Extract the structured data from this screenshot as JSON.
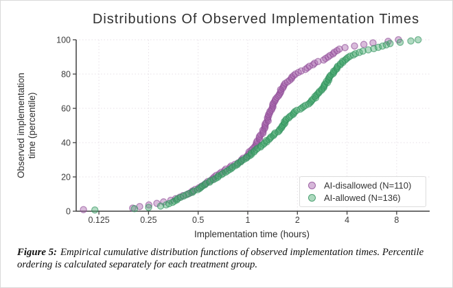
{
  "figure": {
    "caption_label": "Figure 5:",
    "caption_text": "Empirical cumulative distribution functions of observed implementation times. Percentile ordering is calculated separately for each treatment group."
  },
  "colors": {
    "grid": "#e6dfe6",
    "spine": "#3f3f3f",
    "purple_fill": "#a55faa",
    "purple_stroke": "#8c4a94",
    "green_fill": "#46aa6e",
    "green_stroke": "#2f8f5b"
  },
  "chart_data": {
    "type": "scatter",
    "subtype": "ecdf",
    "title": "Distributions Of Observed Implementation Times",
    "xlabel": "Implementation time (hours)",
    "ylabel_line1": "Observed implementation",
    "ylabel_line2": "time (percentile)",
    "x_scale": "log2",
    "xlim": [
      0.09,
      12.5
    ],
    "ylim": [
      0,
      100
    ],
    "grid": true,
    "legend_position": "lower right",
    "x_ticks": [
      {
        "value": 0.125,
        "label": "0.125"
      },
      {
        "value": 0.25,
        "label": "0.25"
      },
      {
        "value": 0.5,
        "label": "0.5"
      },
      {
        "value": 1,
        "label": "1"
      },
      {
        "value": 2,
        "label": "2"
      },
      {
        "value": 4,
        "label": "4"
      },
      {
        "value": 8,
        "label": "8"
      }
    ],
    "y_ticks": [
      0,
      20,
      40,
      60,
      80,
      100
    ],
    "series": [
      {
        "name": "AI-disallowed (N=110)",
        "n": 110,
        "fill": "#a55faa",
        "stroke": "#8c4a94",
        "quantiles_pct_hours": [
          [
            0.9,
            0.1
          ],
          [
            1.8,
            0.2
          ],
          [
            2.7,
            0.22
          ],
          [
            3.6,
            0.25
          ],
          [
            4.5,
            0.28
          ],
          [
            6,
            0.33
          ],
          [
            8,
            0.38
          ],
          [
            10,
            0.43
          ],
          [
            12,
            0.47
          ],
          [
            14,
            0.51
          ],
          [
            16,
            0.55
          ],
          [
            18,
            0.59
          ],
          [
            20,
            0.63
          ],
          [
            23,
            0.7
          ],
          [
            26,
            0.79
          ],
          [
            29,
            0.9
          ],
          [
            32,
            0.98
          ],
          [
            35,
            1.04
          ],
          [
            38,
            1.1
          ],
          [
            41,
            1.15
          ],
          [
            44,
            1.2
          ],
          [
            47,
            1.24
          ],
          [
            50,
            1.28
          ],
          [
            53,
            1.32
          ],
          [
            56,
            1.35
          ],
          [
            59,
            1.39
          ],
          [
            62,
            1.43
          ],
          [
            65,
            1.47
          ],
          [
            68,
            1.53
          ],
          [
            71,
            1.6
          ],
          [
            74,
            1.68
          ],
          [
            77,
            1.8
          ],
          [
            80,
            1.95
          ],
          [
            82,
            2.15
          ],
          [
            85,
            2.4
          ],
          [
            87,
            2.65
          ],
          [
            89,
            3.0
          ],
          [
            91,
            3.2
          ],
          [
            93,
            3.4
          ],
          [
            95,
            3.65
          ],
          [
            96,
            4.2
          ],
          [
            97,
            4.9
          ],
          [
            98,
            5.5
          ],
          [
            99,
            7.0
          ],
          [
            100,
            8.2
          ]
        ]
      },
      {
        "name": "AI-allowed (N=136)",
        "n": 136,
        "fill": "#46aa6e",
        "stroke": "#2f8f5b",
        "quantiles_pct_hours": [
          [
            0.7,
            0.115
          ],
          [
            1.5,
            0.21
          ],
          [
            2.2,
            0.25
          ],
          [
            3,
            0.3
          ],
          [
            4,
            0.33
          ],
          [
            6,
            0.36
          ],
          [
            8,
            0.39
          ],
          [
            10,
            0.44
          ],
          [
            13,
            0.5
          ],
          [
            16,
            0.56
          ],
          [
            19,
            0.63
          ],
          [
            22,
            0.71
          ],
          [
            25,
            0.79
          ],
          [
            28,
            0.88
          ],
          [
            31,
            0.97
          ],
          [
            34,
            1.07
          ],
          [
            37,
            1.17
          ],
          [
            40,
            1.27
          ],
          [
            43,
            1.38
          ],
          [
            46,
            1.5
          ],
          [
            49,
            1.6
          ],
          [
            52,
            1.68
          ],
          [
            55,
            1.78
          ],
          [
            58,
            1.95
          ],
          [
            60,
            2.1
          ],
          [
            63,
            2.35
          ],
          [
            66,
            2.55
          ],
          [
            69,
            2.68
          ],
          [
            72,
            2.85
          ],
          [
            75,
            3.0
          ],
          [
            78,
            3.12
          ],
          [
            81,
            3.3
          ],
          [
            84,
            3.5
          ],
          [
            87,
            3.75
          ],
          [
            89,
            4.0
          ],
          [
            91,
            4.3
          ],
          [
            93,
            4.8
          ],
          [
            95,
            5.9
          ],
          [
            96,
            6.4
          ],
          [
            97,
            6.9
          ],
          [
            98,
            7.4
          ],
          [
            99,
            9.4
          ],
          [
            100,
            10.8
          ]
        ]
      }
    ]
  }
}
